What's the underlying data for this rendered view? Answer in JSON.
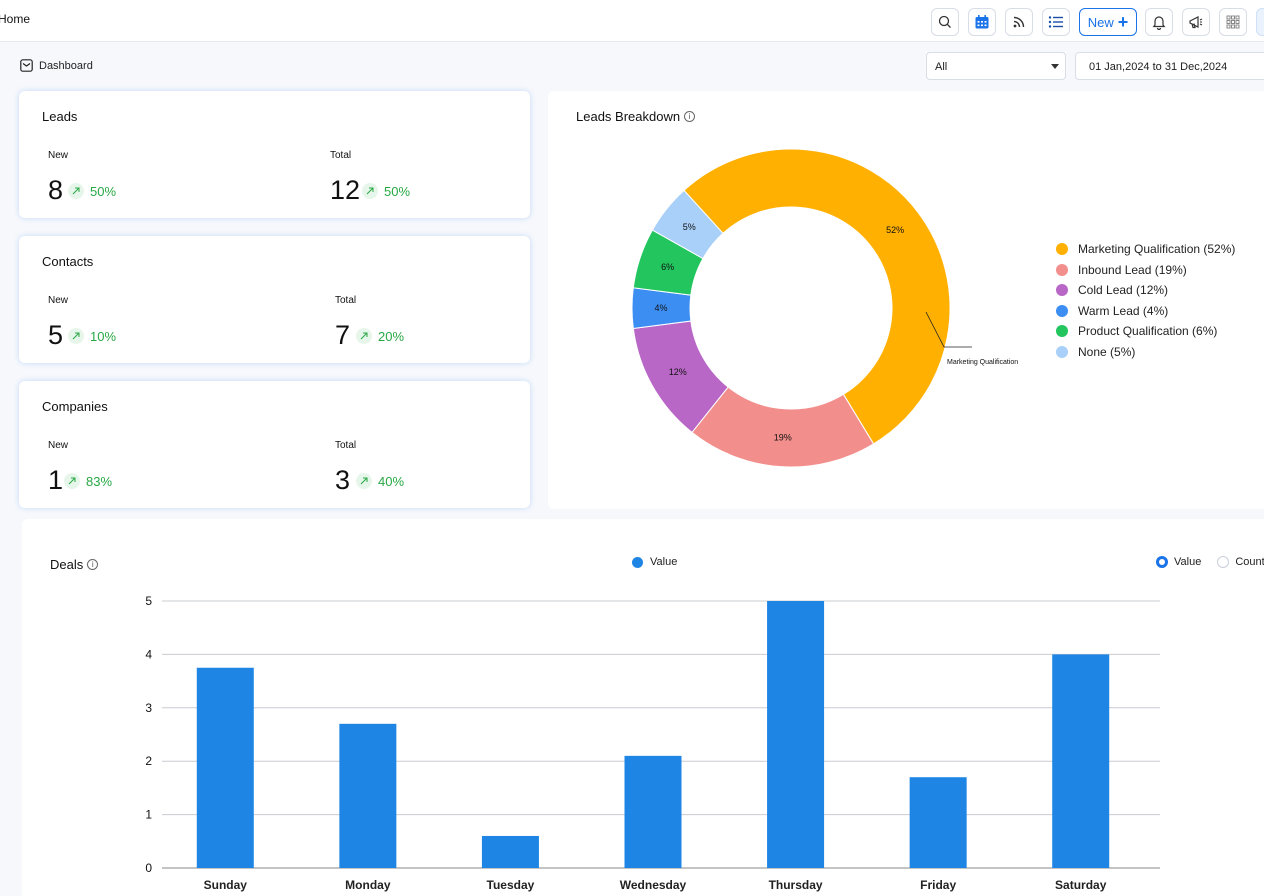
{
  "header": {
    "title": "Home",
    "new_label": "New"
  },
  "subheader": {
    "dashboard_label": "Dashboard",
    "filter_selected": "All",
    "date_range": "01 Jan,2024 to 31 Dec,2024"
  },
  "cards": [
    {
      "title": "Leads",
      "new_label": "New",
      "new_value": "8",
      "new_change": "50%",
      "total_label": "Total",
      "total_value": "12",
      "total_change": "50%"
    },
    {
      "title": "Contacts",
      "new_label": "New",
      "new_value": "5",
      "new_change": "10%",
      "total_label": "Total",
      "total_value": "7",
      "total_change": "20%"
    },
    {
      "title": "Companies",
      "new_label": "New",
      "new_value": "1",
      "new_change": "83%",
      "total_label": "Total",
      "total_value": "3",
      "total_change": "40%"
    }
  ],
  "breakdown": {
    "title": "Leads Breakdown",
    "callout": "Marketing Qualification",
    "legend": [
      "Marketing Qualification (52%)",
      "Inbound Lead (19%)",
      "Cold Lead (12%)",
      "Warm Lead (4%)",
      "Product Qualification (6%)",
      "None (5%)"
    ]
  },
  "deals": {
    "title": "Deals",
    "legend_label": "Value",
    "radio_value": "Value",
    "radio_count": "Count"
  },
  "colors": {
    "accent": "#1a73e8",
    "bar": "#1e85e4",
    "positive": "#27a844"
  },
  "chart_data": [
    {
      "type": "pie",
      "title": "Leads Breakdown",
      "labels": [
        "Marketing Qualification",
        "Inbound Lead",
        "Cold Lead",
        "Warm Lead",
        "Product Qualification",
        "None"
      ],
      "values": [
        52,
        19,
        12,
        4,
        6,
        5
      ],
      "slice_labels": [
        "52%",
        "19%",
        "12%",
        "4%",
        "6%",
        "5%"
      ],
      "colors": [
        "#ffb000",
        "#f28f8c",
        "#b867c6",
        "#3c8ef3",
        "#22c55e",
        "#a9d0f8"
      ],
      "donut": true,
      "legend_position": "right"
    },
    {
      "type": "bar",
      "title": "Deals",
      "categories": [
        "Sunday",
        "Monday",
        "Tuesday",
        "Wednesday",
        "Thursday",
        "Friday",
        "Saturday"
      ],
      "series": [
        {
          "name": "Value",
          "values": [
            3.75,
            2.7,
            0.6,
            2.1,
            5,
            1.7,
            4
          ]
        }
      ],
      "ylim": [
        0,
        5
      ],
      "yticks": [
        "0",
        "1",
        "2",
        "3",
        "4",
        "5"
      ],
      "grid": true,
      "legend_position": "top"
    }
  ]
}
